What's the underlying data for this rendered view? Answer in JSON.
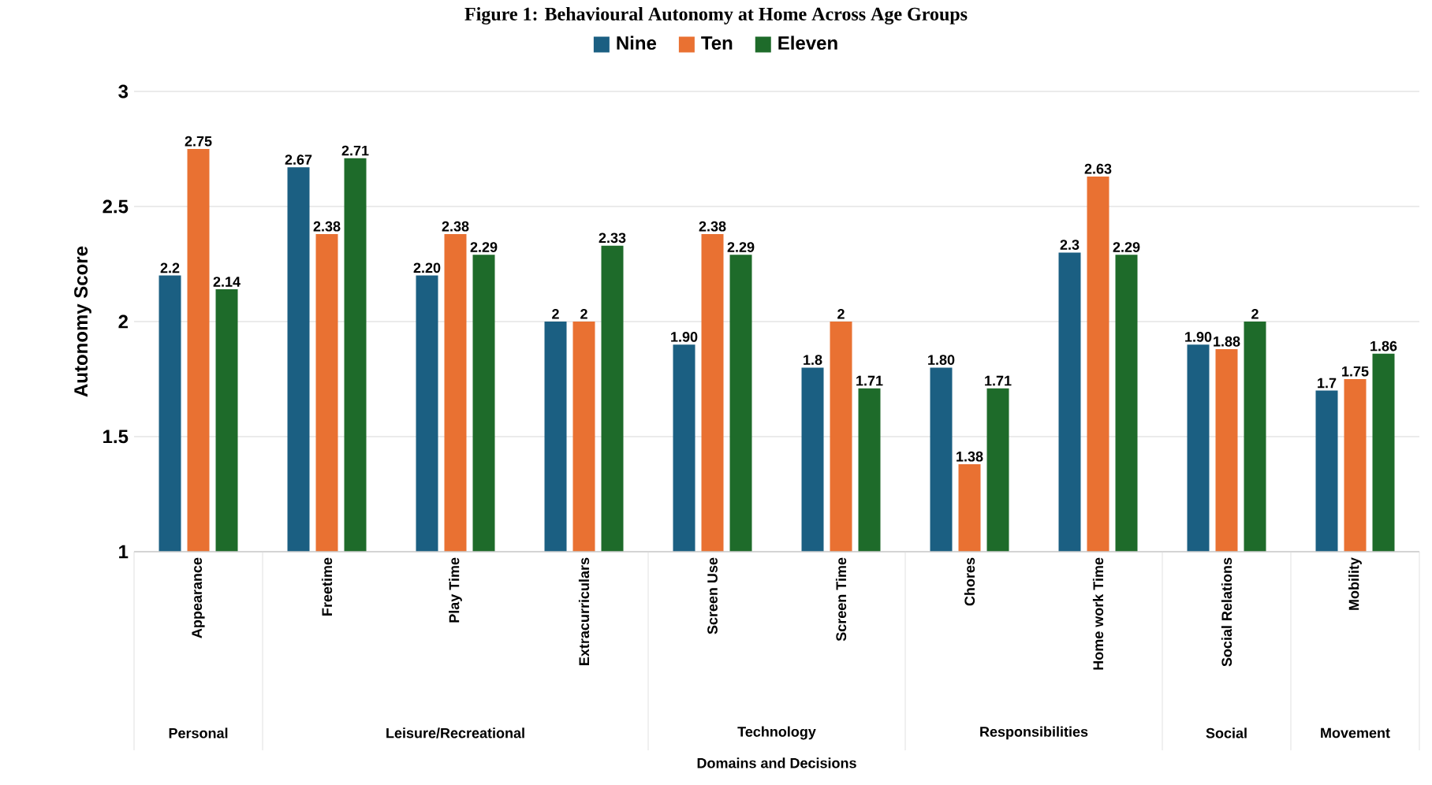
{
  "chart_data": {
    "type": "bar",
    "title": "Figure 1: Behavioural Autonomy at Home Across Age Groups",
    "ylabel": "Autonomy Score",
    "categories": [
      "Appearance",
      "Freetime",
      "Play Time",
      "Extracurriculars",
      "Screen Use",
      "Screen Time",
      "Chores",
      "Home work Time",
      "Social Relations",
      "Mobility"
    ],
    "series": [
      {
        "name": "Nine",
        "color": "#1b5f82",
        "values": [
          2.2,
          2.67,
          2.2,
          2,
          1.9,
          1.8,
          1.8,
          2.3,
          1.9,
          1.7
        ],
        "value_labels": [
          "2.2",
          "2.67",
          "2.20",
          "2",
          "1.90",
          "1.8",
          "1.80",
          "2.3",
          "1.90",
          "1.7"
        ]
      },
      {
        "name": "Ten",
        "color": "#e97132",
        "values": [
          2.75,
          2.38,
          2.38,
          2,
          2.38,
          2,
          1.38,
          2.63,
          1.88,
          1.75
        ],
        "value_labels": [
          "2.75",
          "2.38",
          "2.38",
          "2",
          "2.38",
          "2",
          "1.38",
          "2.63",
          "1.88",
          "1.75"
        ]
      },
      {
        "name": "Eleven",
        "color": "#1e6b2a",
        "values": [
          2.14,
          2.71,
          2.29,
          2.33,
          2.29,
          1.71,
          1.71,
          2.29,
          2,
          1.86
        ],
        "value_labels": [
          "2.14",
          "2.71",
          "2.29",
          "2.33",
          "2.29",
          "1.71",
          "1.71",
          "2.29",
          "2",
          "1.86"
        ]
      }
    ],
    "annotations": [
      "Personal",
      "Leisure/Recreational",
      "Technology",
      "Responsibilities",
      "Social",
      "Movement",
      "Domains and Decisions"
    ],
    "ylim": [
      1,
      3
    ],
    "yticks": [
      1,
      1.5,
      2,
      2.5,
      3
    ],
    "grid": "y",
    "legend": "top"
  }
}
